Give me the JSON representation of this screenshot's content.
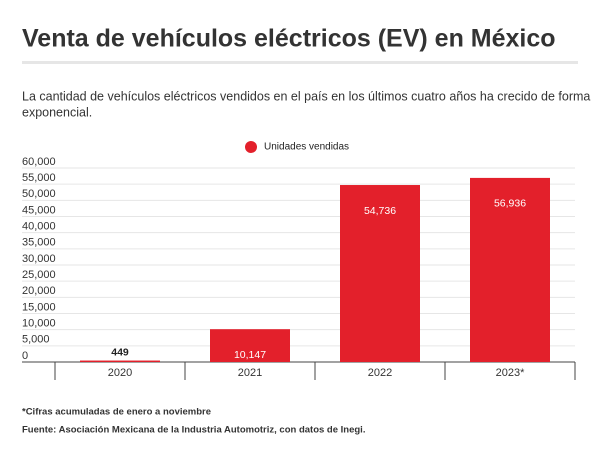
{
  "chart_data": {
    "type": "bar",
    "title": "Venta de vehículos eléctricos (EV) en México",
    "subtitle": [
      "La cantidad de vehículos eléctricos vendidos en el país en los últimos cuatro años ha crecido de forma",
      "exponencial."
    ],
    "categories": [
      "2020",
      "2021",
      "2022",
      "2023*"
    ],
    "series": [
      {
        "name": "Unidades vendidas",
        "color": "#e3202b",
        "values": [
          449,
          10147,
          54736,
          56936
        ],
        "value_labels": [
          "449",
          "10,147",
          "54,736",
          "56,936"
        ]
      }
    ],
    "ylim": [
      0,
      60000
    ],
    "yticks": [
      0,
      {
        "value": 5000,
        "label": "5,000"
      },
      {
        "value": 10000,
        "label": "10,000"
      },
      {
        "value": 15000,
        "label": "15,000"
      },
      {
        "value": 20000,
        "label": "20,000"
      },
      {
        "value": 25000,
        "label": "25,000"
      },
      {
        "value": 30000,
        "label": "30,000"
      },
      {
        "value": 35000,
        "label": "35,000"
      },
      {
        "value": 40000,
        "label": "40,000"
      },
      {
        "value": 45000,
        "label": "45,000"
      },
      {
        "value": 50000,
        "label": "50,000"
      },
      {
        "value": 55000,
        "label": "55,000"
      },
      {
        "value": 60000,
        "label": "60,000"
      }
    ],
    "grid": true,
    "legend": "top",
    "footnote": "*Cifras acumuladas de enero a noviembre",
    "source": "Fuente: Asociación Mexicana de la Industria Automotriz, con datos de Inegi."
  }
}
